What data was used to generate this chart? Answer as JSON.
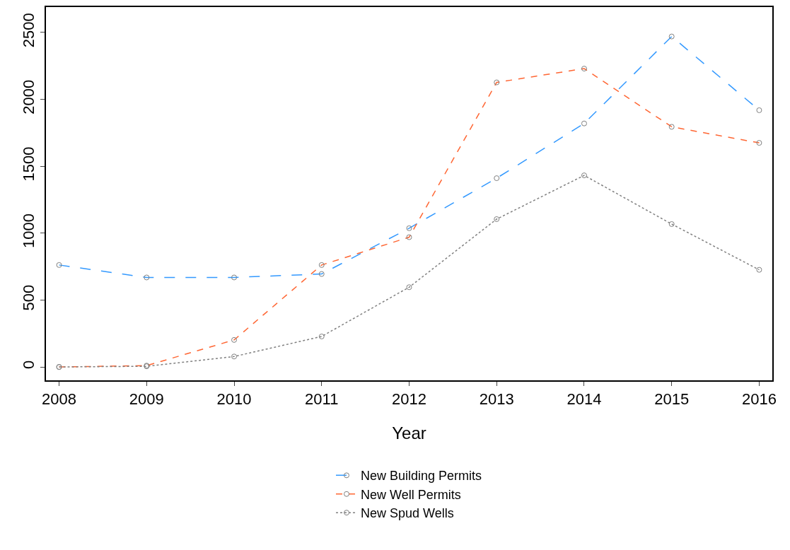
{
  "chart_data": {
    "type": "line",
    "xlabel": "Year",
    "x": [
      2008,
      2009,
      2010,
      2011,
      2012,
      2013,
      2014,
      2015,
      2016
    ],
    "series": [
      {
        "name": "New Building Permits",
        "color": "#3399ff",
        "line_style": "longdash",
        "values": [
          762,
          669,
          669,
          695,
          1037,
          1411,
          1820,
          2470,
          1919
        ]
      },
      {
        "name": "New Well Permits",
        "color": "#ff6633",
        "line_style": "dashed",
        "values": [
          0,
          10,
          202,
          762,
          970,
          2127,
          2230,
          1795,
          1675
        ]
      },
      {
        "name": "New Spud Wells",
        "color": "#808080",
        "line_style": "dotted",
        "values": [
          0,
          5,
          78,
          228,
          596,
          1105,
          1432,
          1068,
          726
        ]
      }
    ],
    "xlim": [
      2007.85,
      2016.15
    ],
    "xticks": [
      2008,
      2009,
      2010,
      2011,
      2012,
      2013,
      2014,
      2015,
      2016
    ],
    "ylim": [
      -100,
      2690
    ],
    "yticks": [
      0,
      500,
      1000,
      1500,
      2000,
      2500
    ],
    "grid": false,
    "legend": "bottom",
    "marker": "circle"
  }
}
